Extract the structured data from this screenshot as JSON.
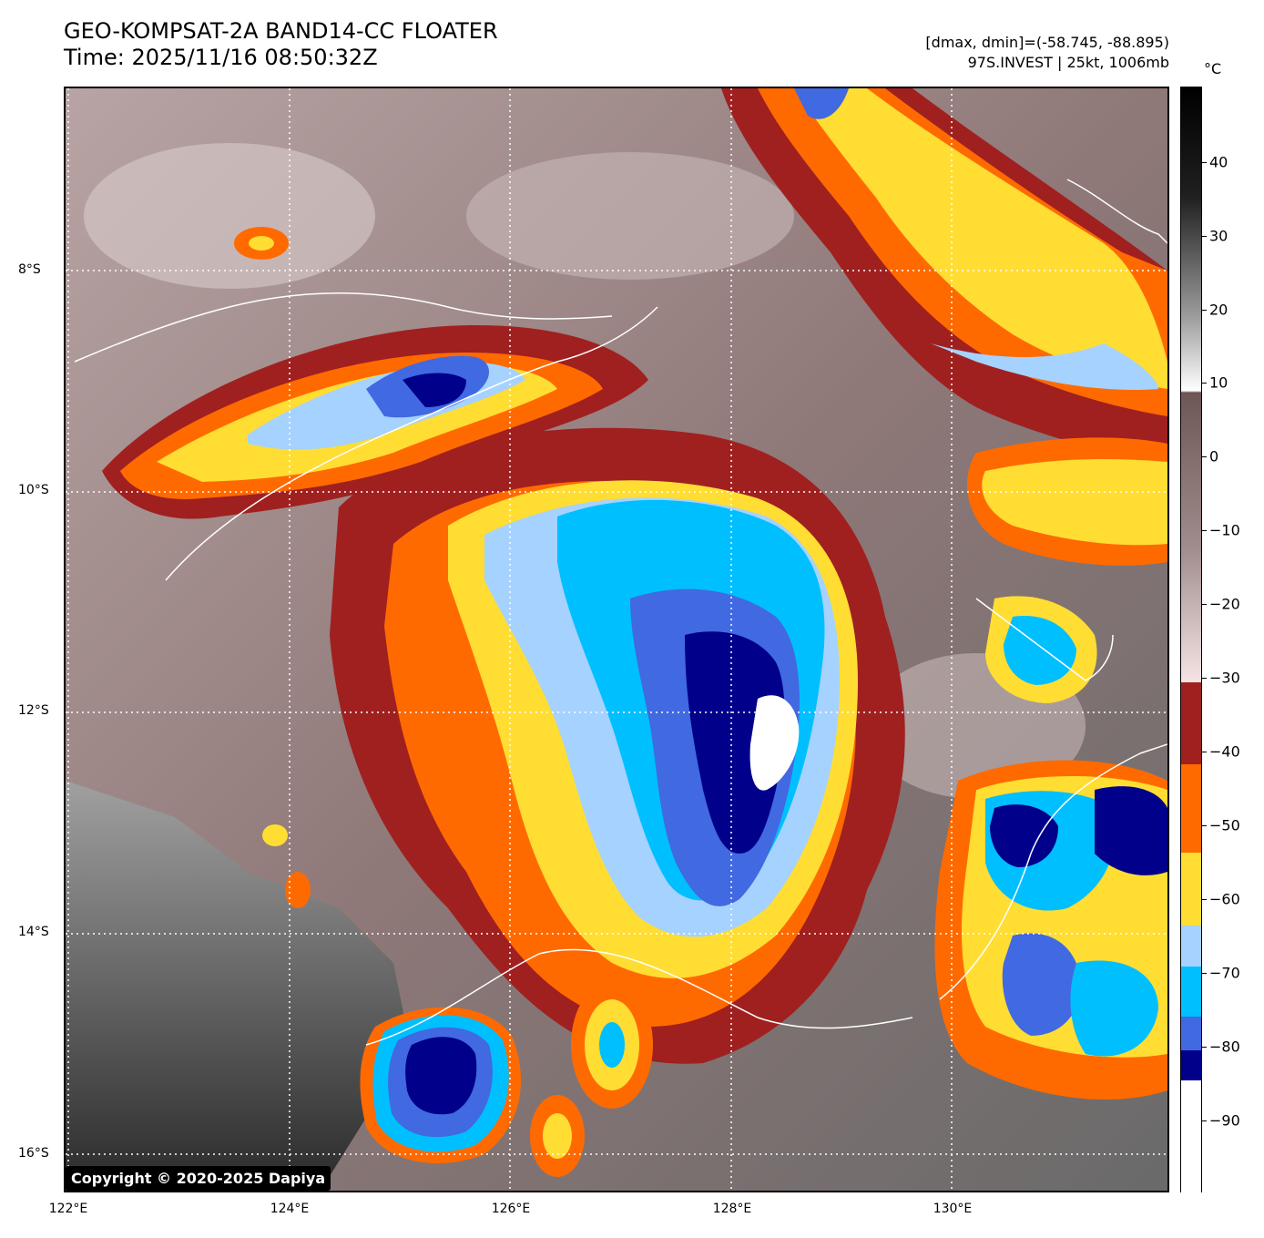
{
  "header": {
    "title_line1": "GEO-KOMPSAT-2A BAND14-CC FLOATER",
    "title_line2": "Time: 2025/11/16 08:50:32Z",
    "info_line1": "[dmax, dmin]=(-58.745, -88.895)",
    "info_line2": "97S.INVEST | 25kt, 1006mb"
  },
  "colorbar": {
    "unit": "°C",
    "ticks": [
      "40",
      "30",
      "20",
      "10",
      "0",
      "−10",
      "−20",
      "−30",
      "−40",
      "−50",
      "−60",
      "−70",
      "−80",
      "−90"
    ],
    "bands": [
      {
        "color": "#ffffff"
      },
      {
        "color": "#00008b"
      },
      {
        "color": "#4169e1"
      },
      {
        "color": "#00bfff"
      },
      {
        "color": "#a6d2ff"
      },
      {
        "color": "#ffdd33"
      },
      {
        "color": "#ff6a00"
      },
      {
        "color": "#a02020"
      }
    ]
  },
  "axes": {
    "lat_labels": [
      "8°S",
      "10°S",
      "12°S",
      "14°S",
      "16°S"
    ],
    "lon_labels": [
      "122°E",
      "124°E",
      "126°E",
      "128°E",
      "130°E"
    ]
  },
  "copyright": "Copyright © 2020-2025 Dapiya",
  "palette": {
    "background": "#9a8585",
    "dark_red": "#a02020",
    "orange": "#ff6a00",
    "yellow": "#ffdd33",
    "light_blue": "#a6d2ff",
    "sky_blue": "#00bfff",
    "royal_blue": "#4169e1",
    "navy": "#00008b",
    "white": "#ffffff"
  }
}
